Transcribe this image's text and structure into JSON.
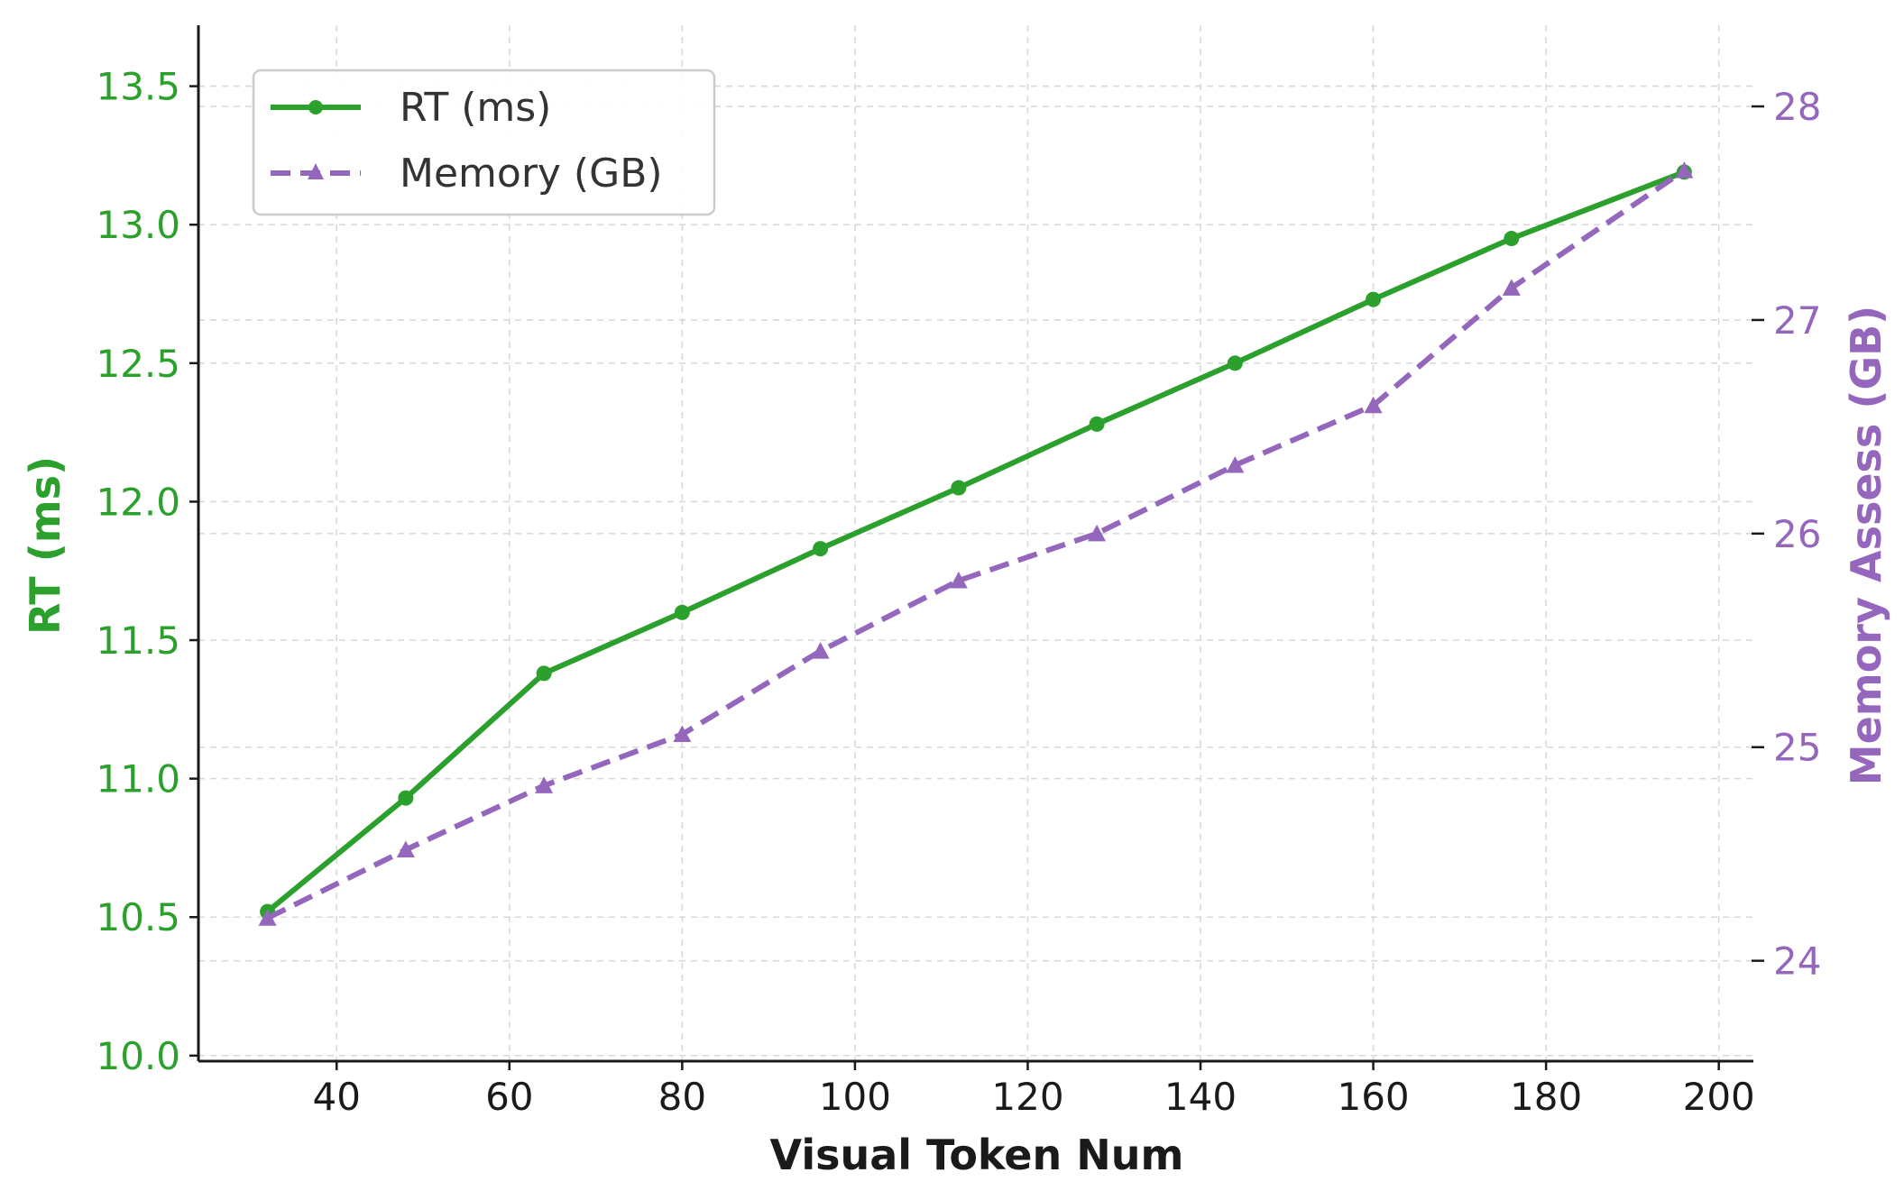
{
  "chart_data": {
    "type": "line",
    "x": [
      32,
      48,
      64,
      80,
      96,
      112,
      128,
      144,
      160,
      176,
      196
    ],
    "xlabel": "Visual Token Num",
    "xlim": [
      24,
      204
    ],
    "xticks": [
      40,
      60,
      80,
      100,
      120,
      140,
      160,
      180,
      200
    ],
    "grid": true,
    "legend_position": "top-left",
    "series": [
      {
        "name": "RT (ms)",
        "axis": "left",
        "color": "#2ca02c",
        "linestyle": "solid",
        "marker": "circle",
        "values": [
          10.52,
          10.93,
          11.38,
          11.6,
          11.83,
          12.05,
          12.28,
          12.5,
          12.73,
          12.95,
          13.19
        ]
      },
      {
        "name": "Memory (GB)",
        "axis": "right",
        "color": "#9467bd",
        "linestyle": "dashed",
        "marker": "triangle",
        "values": [
          24.2,
          24.52,
          24.82,
          25.06,
          25.45,
          25.78,
          26.0,
          26.32,
          26.6,
          27.15,
          27.7
        ]
      }
    ],
    "y_left": {
      "label": "RT (ms)",
      "lim": [
        9.98,
        13.72
      ],
      "ticks": [
        "10.0",
        "10.5",
        "11.0",
        "11.5",
        "12.0",
        "12.5",
        "13.0",
        "13.5"
      ],
      "color": "#2ca02c"
    },
    "y_right": {
      "label": "Memory Assess (GB)",
      "lim": [
        23.53,
        28.38
      ],
      "ticks": [
        "24",
        "25",
        "26",
        "27",
        "28"
      ],
      "color": "#9467bd"
    }
  }
}
